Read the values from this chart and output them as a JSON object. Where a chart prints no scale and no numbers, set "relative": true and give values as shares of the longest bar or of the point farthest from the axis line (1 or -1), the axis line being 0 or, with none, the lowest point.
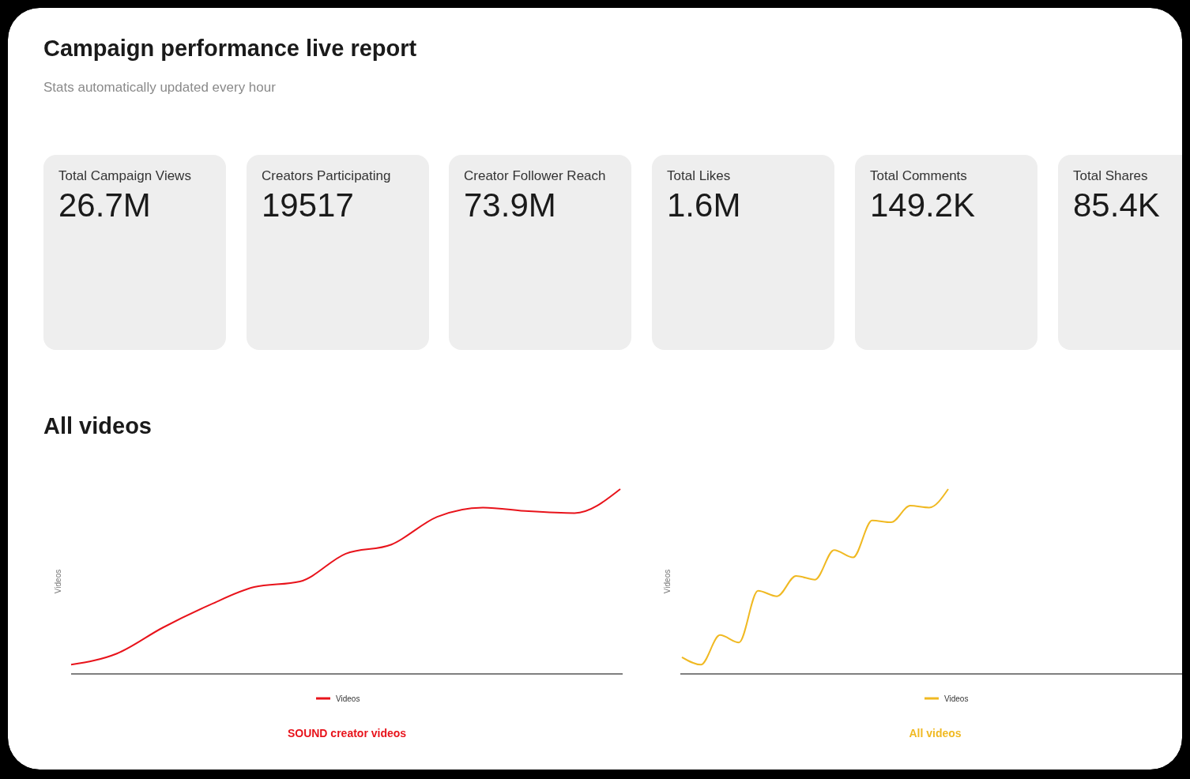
{
  "chart_data": [
    {
      "type": "other",
      "title": "Campaign performance live report",
      "subtitle": "Stats automatically updated every hour",
      "categories": [
        "Total Campaign Views",
        "Creators Participating",
        "Creator Follower Reach",
        "Total Likes",
        "Total Comments",
        "Total Shares"
      ],
      "value_labels": [
        "26.7M",
        "19517",
        "73.9M",
        "1.6M",
        "149.2K",
        "85.4K"
      ]
    },
    {
      "type": "line",
      "title": "SOUND creator videos",
      "annotations": [
        "All videos"
      ],
      "ylabel": "Videos",
      "relative": true,
      "legend": "bottom",
      "categories": [
        null,
        null,
        null,
        null,
        null,
        null,
        null,
        null,
        null,
        null,
        null,
        null,
        null
      ],
      "series": [
        {
          "name": "Videos",
          "color": "#e8131b",
          "values": [
            0.05,
            0.11,
            0.25,
            0.37,
            0.47,
            0.5,
            0.65,
            0.7,
            0.85,
            0.9,
            0.88,
            0.87,
            1
          ]
        }
      ]
    },
    {
      "type": "line",
      "title": "All videos",
      "ylabel": "Videos",
      "relative": true,
      "legend": "bottom",
      "categories": [
        null,
        null,
        null,
        null,
        null,
        null,
        null,
        null,
        null,
        null,
        null,
        null,
        null,
        null,
        null
      ],
      "series": [
        {
          "name": "Videos",
          "color": "#f0b922",
          "values": [
            0.09,
            0.05,
            0.21,
            0.17,
            0.45,
            0.42,
            0.53,
            0.51,
            0.67,
            0.63,
            0.83,
            0.82,
            0.91,
            0.9,
            1
          ]
        }
      ]
    }
  ]
}
